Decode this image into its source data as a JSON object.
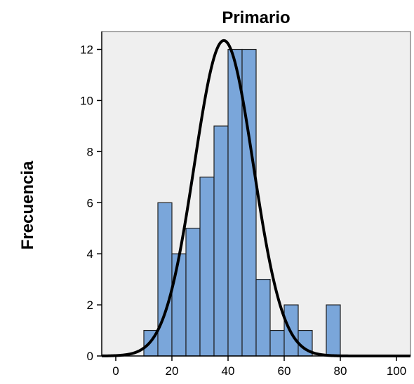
{
  "chart_data": {
    "type": "bar",
    "title": "Primario",
    "xlabel": "",
    "ylabel": "Frecuencia",
    "xlim": [
      -5,
      105
    ],
    "ylim": [
      0,
      12.7
    ],
    "x_ticks": [
      0,
      20,
      40,
      60,
      80,
      100
    ],
    "y_ticks": [
      0,
      2,
      4,
      6,
      8,
      10,
      12
    ],
    "bin_width": 5,
    "bins": [
      {
        "start": 10,
        "end": 15,
        "count": 1
      },
      {
        "start": 15,
        "end": 20,
        "count": 6
      },
      {
        "start": 20,
        "end": 25,
        "count": 4
      },
      {
        "start": 25,
        "end": 30,
        "count": 5
      },
      {
        "start": 30,
        "end": 35,
        "count": 7
      },
      {
        "start": 35,
        "end": 40,
        "count": 9
      },
      {
        "start": 40,
        "end": 45,
        "count": 12
      },
      {
        "start": 45,
        "end": 50,
        "count": 12
      },
      {
        "start": 50,
        "end": 55,
        "count": 3
      },
      {
        "start": 55,
        "end": 60,
        "count": 1
      },
      {
        "start": 60,
        "end": 65,
        "count": 2
      },
      {
        "start": 65,
        "end": 70,
        "count": 1
      },
      {
        "start": 75,
        "end": 80,
        "count": 2
      }
    ],
    "normal_curve": {
      "mean": 38.5,
      "sd": 10.5,
      "n": 65
    },
    "grid": false,
    "colors": {
      "bar_fill": "#7aa6da",
      "bar_stroke": "#1e1e1e",
      "plot_bg": "#efefef",
      "curve": "#000000"
    }
  }
}
